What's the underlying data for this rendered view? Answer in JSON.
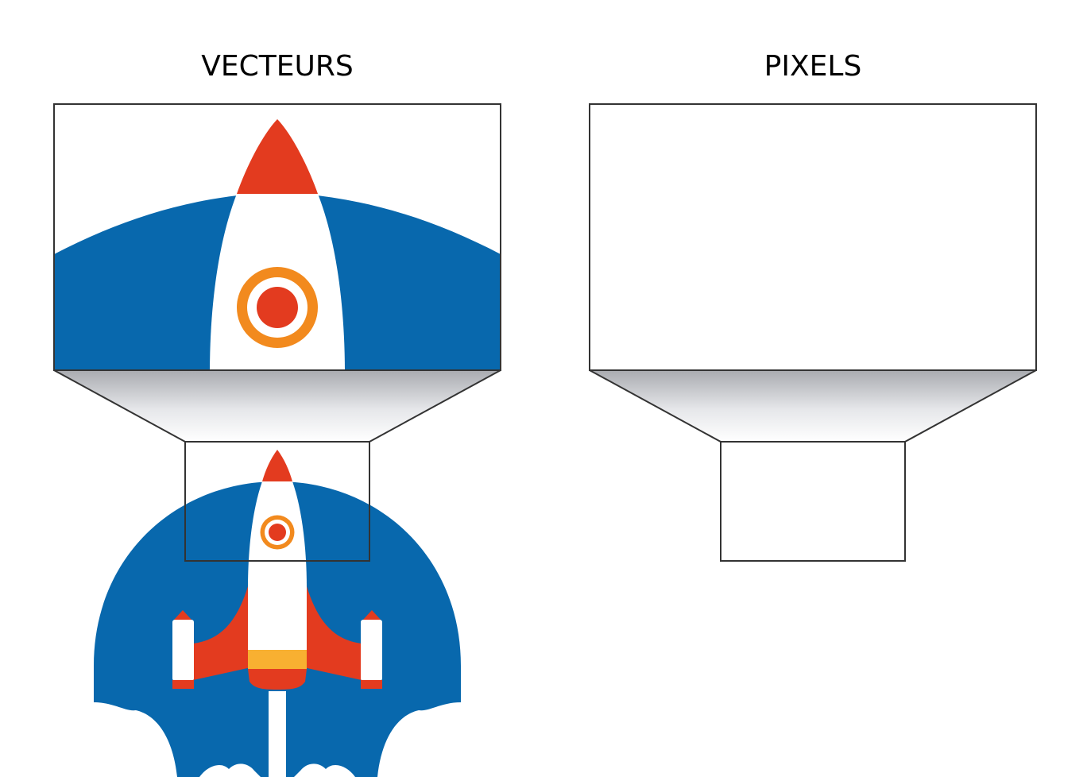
{
  "panels": [
    {
      "title": "VECTEURS"
    },
    {
      "title": "PIXELS"
    }
  ],
  "colors": {
    "dome_blue": "#0868ad",
    "rocket_red": "#e33b1f",
    "target_orange": "#f28a1e",
    "band_yellow": "#f8b031",
    "body_white": "#ffffff",
    "frame": "#333333"
  }
}
